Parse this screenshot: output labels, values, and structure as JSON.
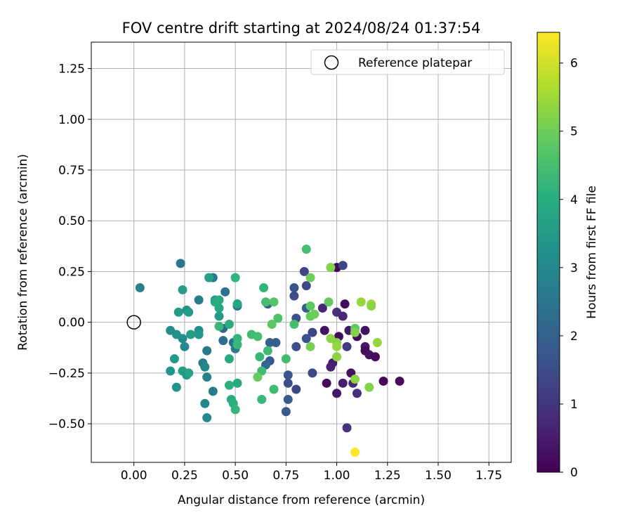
{
  "chart_data": {
    "type": "scatter",
    "title": "FOV centre drift starting at 2024/08/24 01:37:54",
    "xlabel": "Angular distance from reference (arcmin)",
    "ylabel": "Rotation from reference (arcmin)",
    "xlim": [
      -0.21,
      1.86
    ],
    "ylim": [
      -0.69,
      1.38
    ],
    "x_ticks": [
      "0.00",
      "0.25",
      "0.50",
      "0.75",
      "1.00",
      "1.25",
      "1.50",
      "1.75"
    ],
    "x_tick_values": [
      0,
      0.25,
      0.5,
      0.75,
      1.0,
      1.25,
      1.5,
      1.75
    ],
    "y_ticks": [
      "−0.50",
      "−0.25",
      "0.00",
      "0.25",
      "0.50",
      "0.75",
      "1.00",
      "1.25"
    ],
    "y_tick_values": [
      -0.5,
      -0.25,
      0,
      0.25,
      0.5,
      0.75,
      1.0,
      1.25
    ],
    "grid": true,
    "legend": {
      "position": "top-right",
      "label": "Reference platepar"
    },
    "reference_point": {
      "x": 0.0,
      "y": 0.0
    },
    "colorbar": {
      "label": "Hours from first FF file",
      "colormap": "viridis",
      "range": [
        0,
        6.45
      ],
      "ticks": [
        "0",
        "1",
        "2",
        "3",
        "4",
        "5",
        "6"
      ],
      "tick_values": [
        0,
        1,
        2,
        3,
        4,
        5,
        6
      ]
    },
    "points": [
      {
        "x": 1.0,
        "y": 0.27,
        "h": 0.1
      },
      {
        "x": 1.04,
        "y": 0.09,
        "h": 0.2
      },
      {
        "x": 0.94,
        "y": -0.04,
        "h": 0.3
      },
      {
        "x": 1.01,
        "y": -0.07,
        "h": 0.2
      },
      {
        "x": 1.06,
        "y": -0.04,
        "h": 0.4
      },
      {
        "x": 1.1,
        "y": -0.07,
        "h": 0.2
      },
      {
        "x": 1.14,
        "y": -0.04,
        "h": 0.3
      },
      {
        "x": 1.14,
        "y": -0.12,
        "h": 0.4
      },
      {
        "x": 1.14,
        "y": -0.14,
        "h": 0.2
      },
      {
        "x": 1.16,
        "y": -0.16,
        "h": 0.3
      },
      {
        "x": 1.19,
        "y": -0.17,
        "h": 0.2
      },
      {
        "x": 1.23,
        "y": -0.29,
        "h": 0.1
      },
      {
        "x": 1.31,
        "y": -0.29,
        "h": 0.2
      },
      {
        "x": 0.98,
        "y": -0.2,
        "h": 0.5
      },
      {
        "x": 0.97,
        "y": -0.22,
        "h": 0.6
      },
      {
        "x": 0.95,
        "y": -0.3,
        "h": 0.2
      },
      {
        "x": 1.0,
        "y": -0.35,
        "h": 0.4
      },
      {
        "x": 1.03,
        "y": -0.3,
        "h": 0.5
      },
      {
        "x": 1.07,
        "y": -0.25,
        "h": 0.3
      },
      {
        "x": 1.08,
        "y": -0.3,
        "h": 0.7
      },
      {
        "x": 1.1,
        "y": -0.35,
        "h": 0.8
      },
      {
        "x": 1.05,
        "y": -0.52,
        "h": 0.9
      },
      {
        "x": 0.93,
        "y": 0.07,
        "h": 0.7
      },
      {
        "x": 1.0,
        "y": 0.05,
        "h": 0.9
      },
      {
        "x": 1.03,
        "y": 0.03,
        "h": 0.7
      },
      {
        "x": 1.05,
        "y": -0.12,
        "h": 1.1
      },
      {
        "x": 1.03,
        "y": 0.28,
        "h": 1.4
      },
      {
        "x": 0.84,
        "y": 0.25,
        "h": 1.3
      },
      {
        "x": 0.85,
        "y": 0.18,
        "h": 1.4
      },
      {
        "x": 0.79,
        "y": 0.17,
        "h": 1.7
      },
      {
        "x": 0.79,
        "y": 0.13,
        "h": 1.5
      },
      {
        "x": 0.85,
        "y": 0.07,
        "h": 1.8
      },
      {
        "x": 0.8,
        "y": 0.02,
        "h": 1.6
      },
      {
        "x": 0.88,
        "y": -0.05,
        "h": 1.3
      },
      {
        "x": 0.85,
        "y": -0.08,
        "h": 1.6
      },
      {
        "x": 0.8,
        "y": -0.12,
        "h": 1.5
      },
      {
        "x": 0.88,
        "y": -0.25,
        "h": 1.4
      },
      {
        "x": 0.8,
        "y": -0.33,
        "h": 1.4
      },
      {
        "x": 0.76,
        "y": -0.26,
        "h": 1.7
      },
      {
        "x": 0.76,
        "y": -0.3,
        "h": 1.5
      },
      {
        "x": 0.76,
        "y": -0.38,
        "h": 1.9
      },
      {
        "x": 0.75,
        "y": -0.44,
        "h": 1.8
      },
      {
        "x": 0.7,
        "y": -0.1,
        "h": 1.9
      },
      {
        "x": 0.67,
        "y": -0.1,
        "h": 2.0
      },
      {
        "x": 0.67,
        "y": -0.19,
        "h": 1.8
      },
      {
        "x": 0.65,
        "y": -0.21,
        "h": 2.2
      },
      {
        "x": 0.66,
        "y": 0.09,
        "h": 2.0
      },
      {
        "x": 0.51,
        "y": 0.09,
        "h": 2.1
      },
      {
        "x": 0.51,
        "y": 0.08,
        "h": 2.3
      },
      {
        "x": 0.45,
        "y": 0.15,
        "h": 2.4
      },
      {
        "x": 0.39,
        "y": 0.22,
        "h": 2.6
      },
      {
        "x": 0.32,
        "y": 0.11,
        "h": 2.7
      },
      {
        "x": 0.23,
        "y": 0.29,
        "h": 2.5
      },
      {
        "x": 0.03,
        "y": 0.17,
        "h": 2.8
      },
      {
        "x": 0.44,
        "y": -0.03,
        "h": 2.2
      },
      {
        "x": 0.44,
        "y": -0.09,
        "h": 2.3
      },
      {
        "x": 0.49,
        "y": -0.1,
        "h": 2.4
      },
      {
        "x": 0.5,
        "y": -0.13,
        "h": 2.6
      },
      {
        "x": 0.34,
        "y": -0.2,
        "h": 2.7
      },
      {
        "x": 0.36,
        "y": -0.14,
        "h": 2.6
      },
      {
        "x": 0.35,
        "y": -0.22,
        "h": 2.9
      },
      {
        "x": 0.36,
        "y": -0.27,
        "h": 2.8
      },
      {
        "x": 0.39,
        "y": -0.34,
        "h": 2.7
      },
      {
        "x": 0.35,
        "y": -0.4,
        "h": 2.9
      },
      {
        "x": 0.36,
        "y": -0.47,
        "h": 3.0
      },
      {
        "x": 0.25,
        "y": -0.12,
        "h": 3.0
      },
      {
        "x": 0.24,
        "y": -0.08,
        "h": 3.1
      },
      {
        "x": 0.21,
        "y": -0.06,
        "h": 3.3
      },
      {
        "x": 0.18,
        "y": -0.04,
        "h": 3.2
      },
      {
        "x": 0.2,
        "y": -0.18,
        "h": 3.5
      },
      {
        "x": 0.18,
        "y": -0.24,
        "h": 3.4
      },
      {
        "x": 0.21,
        "y": -0.32,
        "h": 3.3
      },
      {
        "x": 0.24,
        "y": -0.24,
        "h": 3.6
      },
      {
        "x": 0.26,
        "y": -0.26,
        "h": 3.4
      },
      {
        "x": 0.27,
        "y": -0.25,
        "h": 3.7
      },
      {
        "x": 0.22,
        "y": 0.05,
        "h": 3.5
      },
      {
        "x": 0.26,
        "y": 0.06,
        "h": 3.3
      },
      {
        "x": 0.27,
        "y": 0.05,
        "h": 3.5
      },
      {
        "x": 0.24,
        "y": 0.16,
        "h": 3.6
      },
      {
        "x": 0.28,
        "y": -0.06,
        "h": 3.6
      },
      {
        "x": 0.32,
        "y": -0.04,
        "h": 3.2
      },
      {
        "x": 0.32,
        "y": -0.06,
        "h": 3.4
      },
      {
        "x": 0.37,
        "y": 0.22,
        "h": 3.7
      },
      {
        "x": 0.4,
        "y": 0.11,
        "h": 3.6
      },
      {
        "x": 0.4,
        "y": 0.1,
        "h": 3.9
      },
      {
        "x": 0.42,
        "y": 0.07,
        "h": 3.8
      },
      {
        "x": 0.42,
        "y": 0.03,
        "h": 3.5
      },
      {
        "x": 0.42,
        "y": 0.11,
        "h": 4.0
      },
      {
        "x": 0.47,
        "y": -0.18,
        "h": 3.9
      },
      {
        "x": 0.51,
        "y": 0.09,
        "h": 3.8
      },
      {
        "x": 0.5,
        "y": 0.22,
        "h": 4.2
      },
      {
        "x": 0.51,
        "y": -0.3,
        "h": 3.9
      },
      {
        "x": 0.47,
        "y": -0.31,
        "h": 4.1
      },
      {
        "x": 0.48,
        "y": -0.38,
        "h": 4.0
      },
      {
        "x": 0.49,
        "y": -0.4,
        "h": 4.1
      },
      {
        "x": 0.5,
        "y": -0.43,
        "h": 4.2
      },
      {
        "x": 0.42,
        "y": -0.02,
        "h": 4.3
      },
      {
        "x": 0.47,
        "y": -0.01,
        "h": 4.0
      },
      {
        "x": 0.51,
        "y": -0.08,
        "h": 4.2
      },
      {
        "x": 0.51,
        "y": -0.11,
        "h": 4.3
      },
      {
        "x": 0.58,
        "y": -0.06,
        "h": 4.4
      },
      {
        "x": 0.61,
        "y": -0.07,
        "h": 4.5
      },
      {
        "x": 0.62,
        "y": -0.17,
        "h": 4.3
      },
      {
        "x": 0.63,
        "y": -0.24,
        "h": 4.4
      },
      {
        "x": 0.66,
        "y": -0.14,
        "h": 4.4
      },
      {
        "x": 0.63,
        "y": -0.38,
        "h": 4.3
      },
      {
        "x": 0.69,
        "y": -0.33,
        "h": 4.4
      },
      {
        "x": 0.64,
        "y": 0.17,
        "h": 4.2
      },
      {
        "x": 0.65,
        "y": 0.1,
        "h": 4.5
      },
      {
        "x": 0.69,
        "y": 0.1,
        "h": 4.7
      },
      {
        "x": 0.71,
        "y": 0.02,
        "h": 4.6
      },
      {
        "x": 0.68,
        "y": -0.01,
        "h": 4.8
      },
      {
        "x": 0.75,
        "y": -0.18,
        "h": 4.4
      },
      {
        "x": 0.79,
        "y": -0.01,
        "h": 4.5
      },
      {
        "x": 0.61,
        "y": -0.27,
        "h": 4.9
      },
      {
        "x": 0.85,
        "y": 0.36,
        "h": 4.5
      },
      {
        "x": 0.87,
        "y": 0.22,
        "h": 5.0
      },
      {
        "x": 0.87,
        "y": 0.08,
        "h": 4.8
      },
      {
        "x": 0.87,
        "y": 0.03,
        "h": 4.9
      },
      {
        "x": 0.89,
        "y": 0.04,
        "h": 5.0
      },
      {
        "x": 0.87,
        "y": -0.12,
        "h": 5.1
      },
      {
        "x": 0.96,
        "y": 0.1,
        "h": 4.9
      },
      {
        "x": 0.97,
        "y": 0.27,
        "h": 5.2
      },
      {
        "x": 0.97,
        "y": -0.08,
        "h": 5.3
      },
      {
        "x": 1.0,
        "y": -0.1,
        "h": 5.2
      },
      {
        "x": 1.0,
        "y": -0.12,
        "h": 5.4
      },
      {
        "x": 1.0,
        "y": -0.17,
        "h": 5.3
      },
      {
        "x": 1.09,
        "y": -0.03,
        "h": 4.8
      },
      {
        "x": 1.09,
        "y": -0.05,
        "h": 5.2
      },
      {
        "x": 1.09,
        "y": -0.28,
        "h": 5.3
      },
      {
        "x": 1.12,
        "y": 0.1,
        "h": 5.4
      },
      {
        "x": 1.17,
        "y": 0.09,
        "h": 5.5
      },
      {
        "x": 1.17,
        "y": 0.08,
        "h": 5.3
      },
      {
        "x": 1.2,
        "y": -0.1,
        "h": 5.4
      },
      {
        "x": 1.16,
        "y": -0.32,
        "h": 5.2
      },
      {
        "x": 1.09,
        "y": -0.64,
        "h": 6.45
      }
    ]
  }
}
